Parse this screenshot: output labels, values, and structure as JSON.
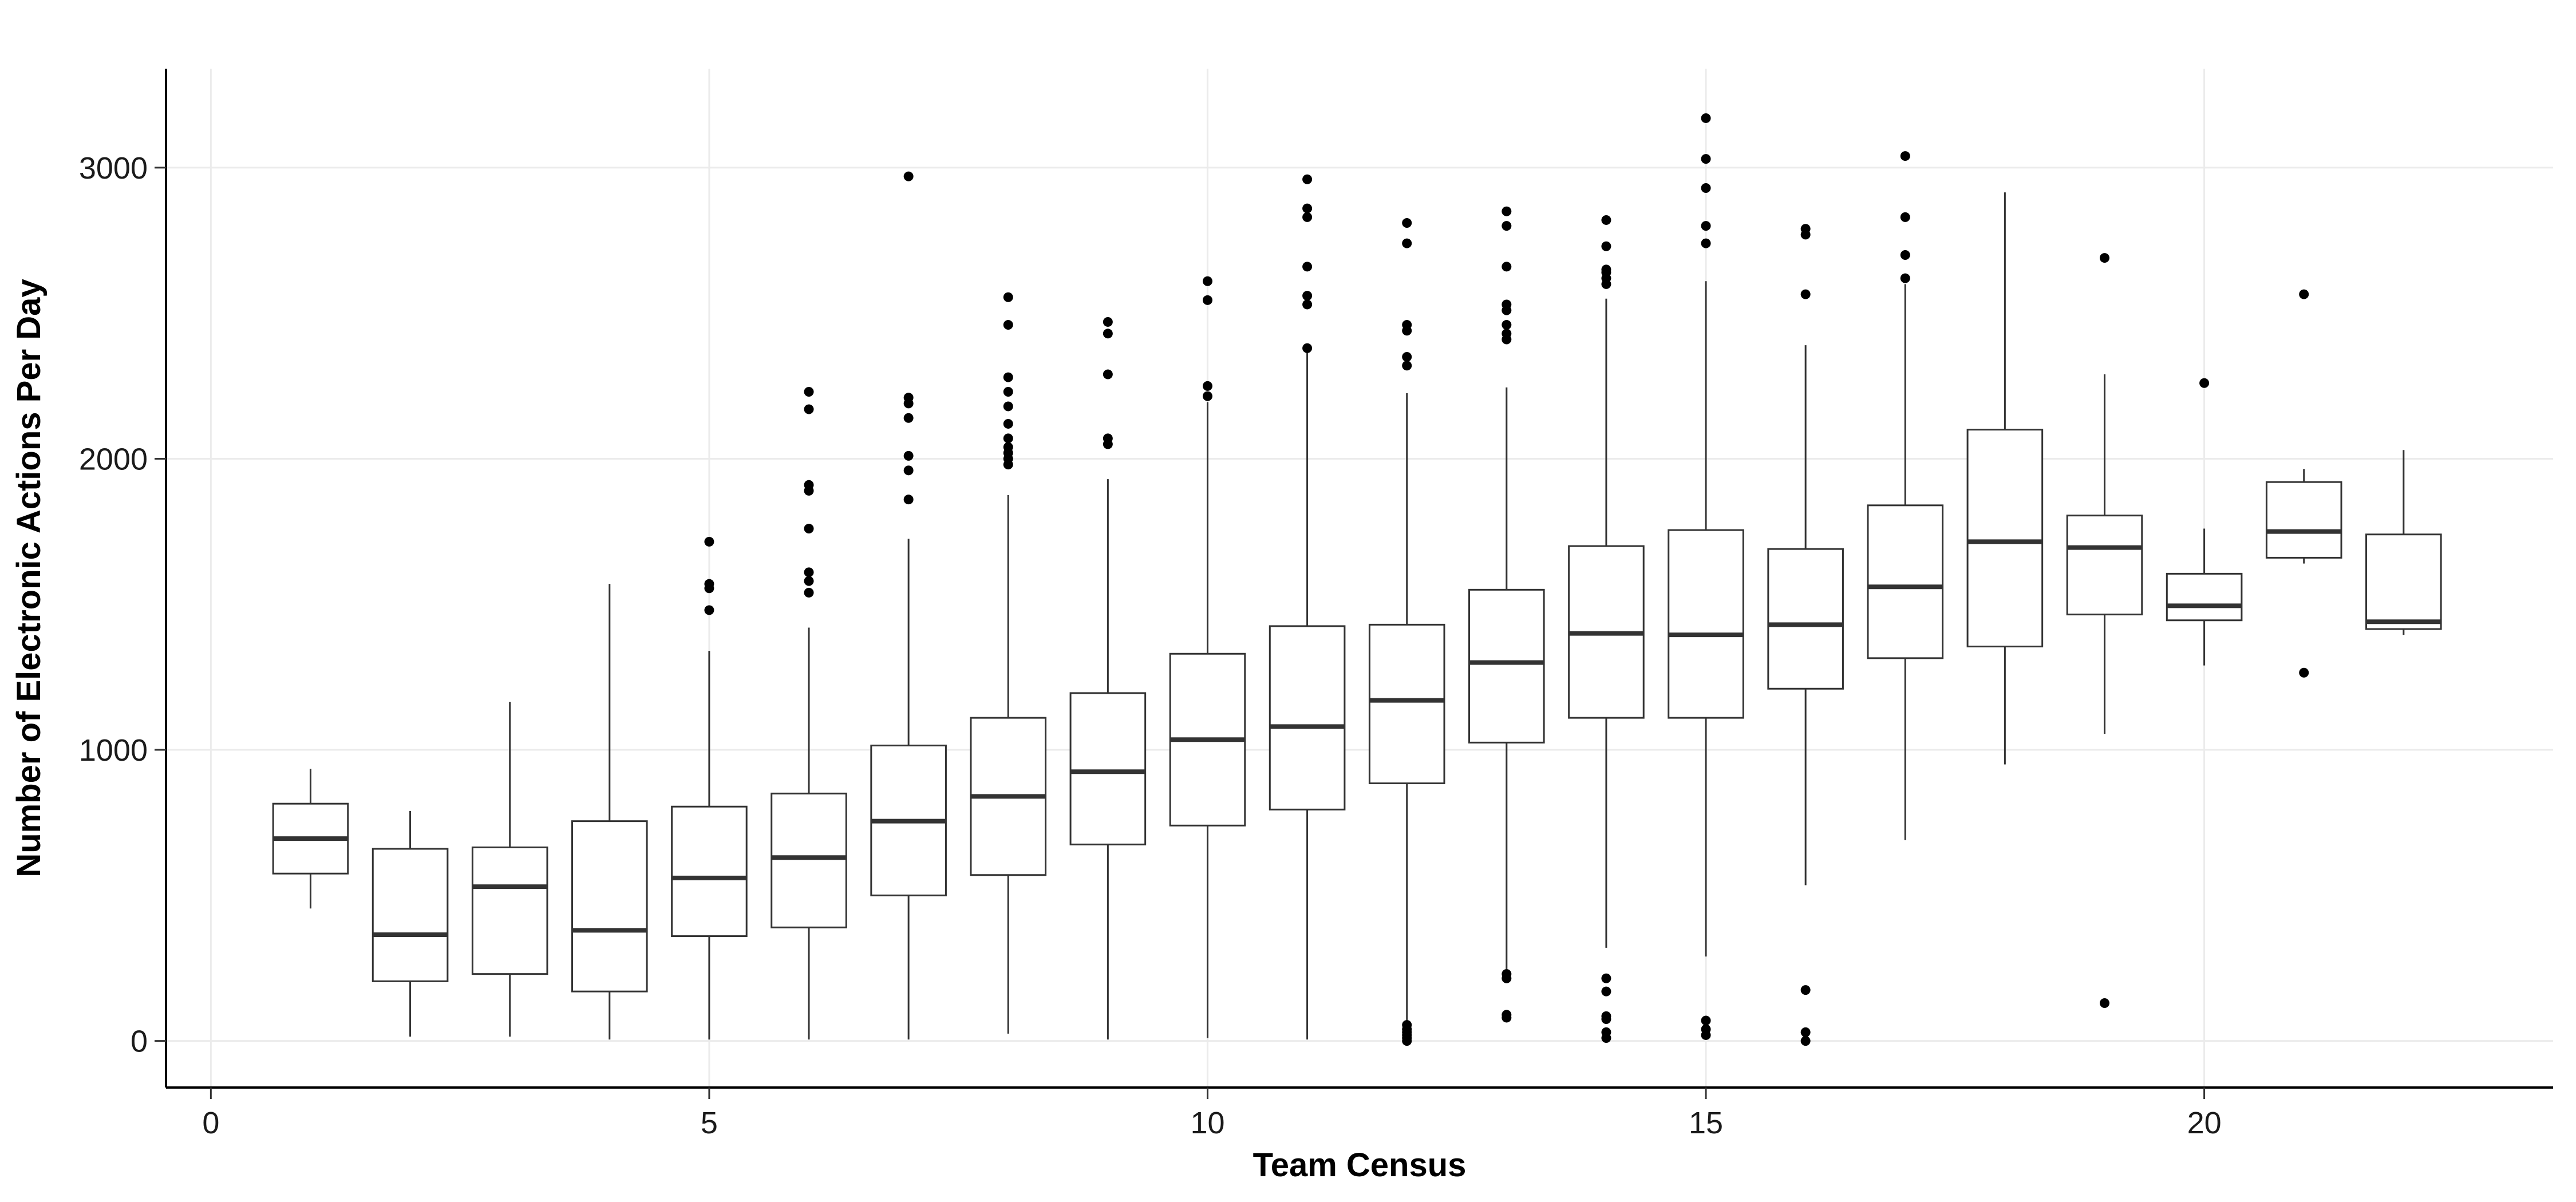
{
  "chart_data": {
    "type": "boxplot",
    "title": "",
    "xlabel": "Team Census",
    "ylabel": "Number of Electronic Actions Per Day",
    "xlim": [
      -0.45,
      23.5
    ],
    "ylim": [
      -160,
      3340
    ],
    "x_ticks": [
      0,
      5,
      10,
      15,
      20
    ],
    "y_ticks": [
      0,
      1000,
      2000,
      3000
    ],
    "x_tick_labels": [
      "0",
      "5",
      "10",
      "15",
      "20"
    ],
    "y_tick_labels": [
      "0",
      "1000",
      "2000",
      "3000"
    ],
    "grid": true,
    "legend": "none",
    "colors": {
      "background": "#ffffff",
      "grid": "#ebebeb",
      "axis": "#000000",
      "box_stroke": "#333333",
      "median": "#333333",
      "outlier": "#000000"
    },
    "boxes": [
      {
        "x": 1,
        "lower_whisker": 455,
        "q1": 575,
        "median": 695,
        "q3": 815,
        "upper_whisker": 935,
        "outliers": []
      },
      {
        "x": 2,
        "lower_whisker": 15,
        "q1": 205,
        "median": 365,
        "q3": 660,
        "upper_whisker": 790,
        "outliers": []
      },
      {
        "x": 3,
        "lower_whisker": 15,
        "q1": 230,
        "median": 530,
        "q3": 665,
        "upper_whisker": 1165,
        "outliers": []
      },
      {
        "x": 4,
        "lower_whisker": 5,
        "q1": 170,
        "median": 380,
        "q3": 755,
        "upper_whisker": 1570,
        "outliers": []
      },
      {
        "x": 5,
        "lower_whisker": 5,
        "q1": 360,
        "median": 560,
        "q3": 805,
        "upper_whisker": 1340,
        "outliers": [
          1480,
          1555,
          1570,
          1715
        ]
      },
      {
        "x": 6,
        "lower_whisker": 5,
        "q1": 390,
        "median": 630,
        "q3": 850,
        "upper_whisker": 1420,
        "outliers": [
          1540,
          1580,
          1610,
          1760,
          1890,
          1910,
          2170,
          2230
        ]
      },
      {
        "x": 7,
        "lower_whisker": 5,
        "q1": 500,
        "median": 755,
        "q3": 1015,
        "upper_whisker": 1725,
        "outliers": [
          1860,
          1960,
          2010,
          2140,
          2190,
          2210,
          2970
        ]
      },
      {
        "x": 8,
        "lower_whisker": 25,
        "q1": 570,
        "median": 840,
        "q3": 1110,
        "upper_whisker": 1875,
        "outliers": [
          1980,
          2000,
          2020,
          2040,
          2070,
          2120,
          2180,
          2230,
          2280,
          2460,
          2555
        ]
      },
      {
        "x": 9,
        "lower_whisker": 5,
        "q1": 675,
        "median": 925,
        "q3": 1195,
        "upper_whisker": 1930,
        "outliers": [
          2050,
          2070,
          2290,
          2430,
          2470
        ]
      },
      {
        "x": 10,
        "lower_whisker": 10,
        "q1": 740,
        "median": 1035,
        "q3": 1330,
        "upper_whisker": 2195,
        "outliers": [
          2215,
          2250,
          2545,
          2610
        ]
      },
      {
        "x": 11,
        "lower_whisker": 5,
        "q1": 795,
        "median": 1080,
        "q3": 1425,
        "upper_whisker": 2370,
        "outliers": [
          2380,
          2530,
          2560,
          2660,
          2830,
          2860,
          2960
        ]
      },
      {
        "x": 12,
        "lower_whisker": 60,
        "q1": 885,
        "median": 1170,
        "q3": 1430,
        "upper_whisker": 2225,
        "outliers": [
          0,
          10,
          20,
          30,
          40,
          55,
          2320,
          2350,
          2440,
          2460,
          2740,
          2810
        ]
      },
      {
        "x": 13,
        "lower_whisker": 240,
        "q1": 1025,
        "median": 1300,
        "q3": 1550,
        "upper_whisker": 2245,
        "outliers": [
          80,
          90,
          215,
          230,
          2410,
          2430,
          2460,
          2510,
          2530,
          2660,
          2800,
          2850
        ]
      },
      {
        "x": 14,
        "lower_whisker": 320,
        "q1": 1110,
        "median": 1400,
        "q3": 1700,
        "upper_whisker": 2550,
        "outliers": [
          10,
          30,
          75,
          85,
          170,
          215,
          2600,
          2620,
          2640,
          2650,
          2730,
          2820
        ]
      },
      {
        "x": 15,
        "lower_whisker": 290,
        "q1": 1110,
        "median": 1395,
        "q3": 1755,
        "upper_whisker": 2610,
        "outliers": [
          20,
          40,
          70,
          2740,
          2800,
          2930,
          3030,
          3170
        ]
      },
      {
        "x": 16,
        "lower_whisker": 535,
        "q1": 1210,
        "median": 1430,
        "q3": 1690,
        "upper_whisker": 2390,
        "outliers": [
          0,
          30,
          175,
          2565,
          2770,
          2790
        ]
      },
      {
        "x": 17,
        "lower_whisker": 690,
        "q1": 1315,
        "median": 1560,
        "q3": 1840,
        "upper_whisker": 2600,
        "outliers": [
          2620,
          2700,
          2830,
          3040
        ]
      },
      {
        "x": 18,
        "lower_whisker": 950,
        "q1": 1355,
        "median": 1715,
        "q3": 2100,
        "upper_whisker": 2915,
        "outliers": []
      },
      {
        "x": 19,
        "lower_whisker": 1055,
        "q1": 1465,
        "median": 1695,
        "q3": 1805,
        "upper_whisker": 2290,
        "outliers": [
          130,
          2690
        ]
      },
      {
        "x": 20,
        "lower_whisker": 1290,
        "q1": 1445,
        "median": 1495,
        "q3": 1605,
        "upper_whisker": 1760,
        "outliers": [
          2260
        ]
      },
      {
        "x": 21,
        "lower_whisker": 1640,
        "q1": 1660,
        "median": 1750,
        "q3": 1920,
        "upper_whisker": 1965,
        "outliers": [
          1265,
          2565
        ]
      },
      {
        "x": 22,
        "lower_whisker": 1395,
        "q1": 1415,
        "median": 1440,
        "q3": 1740,
        "upper_whisker": 2030,
        "outliers": []
      }
    ]
  }
}
